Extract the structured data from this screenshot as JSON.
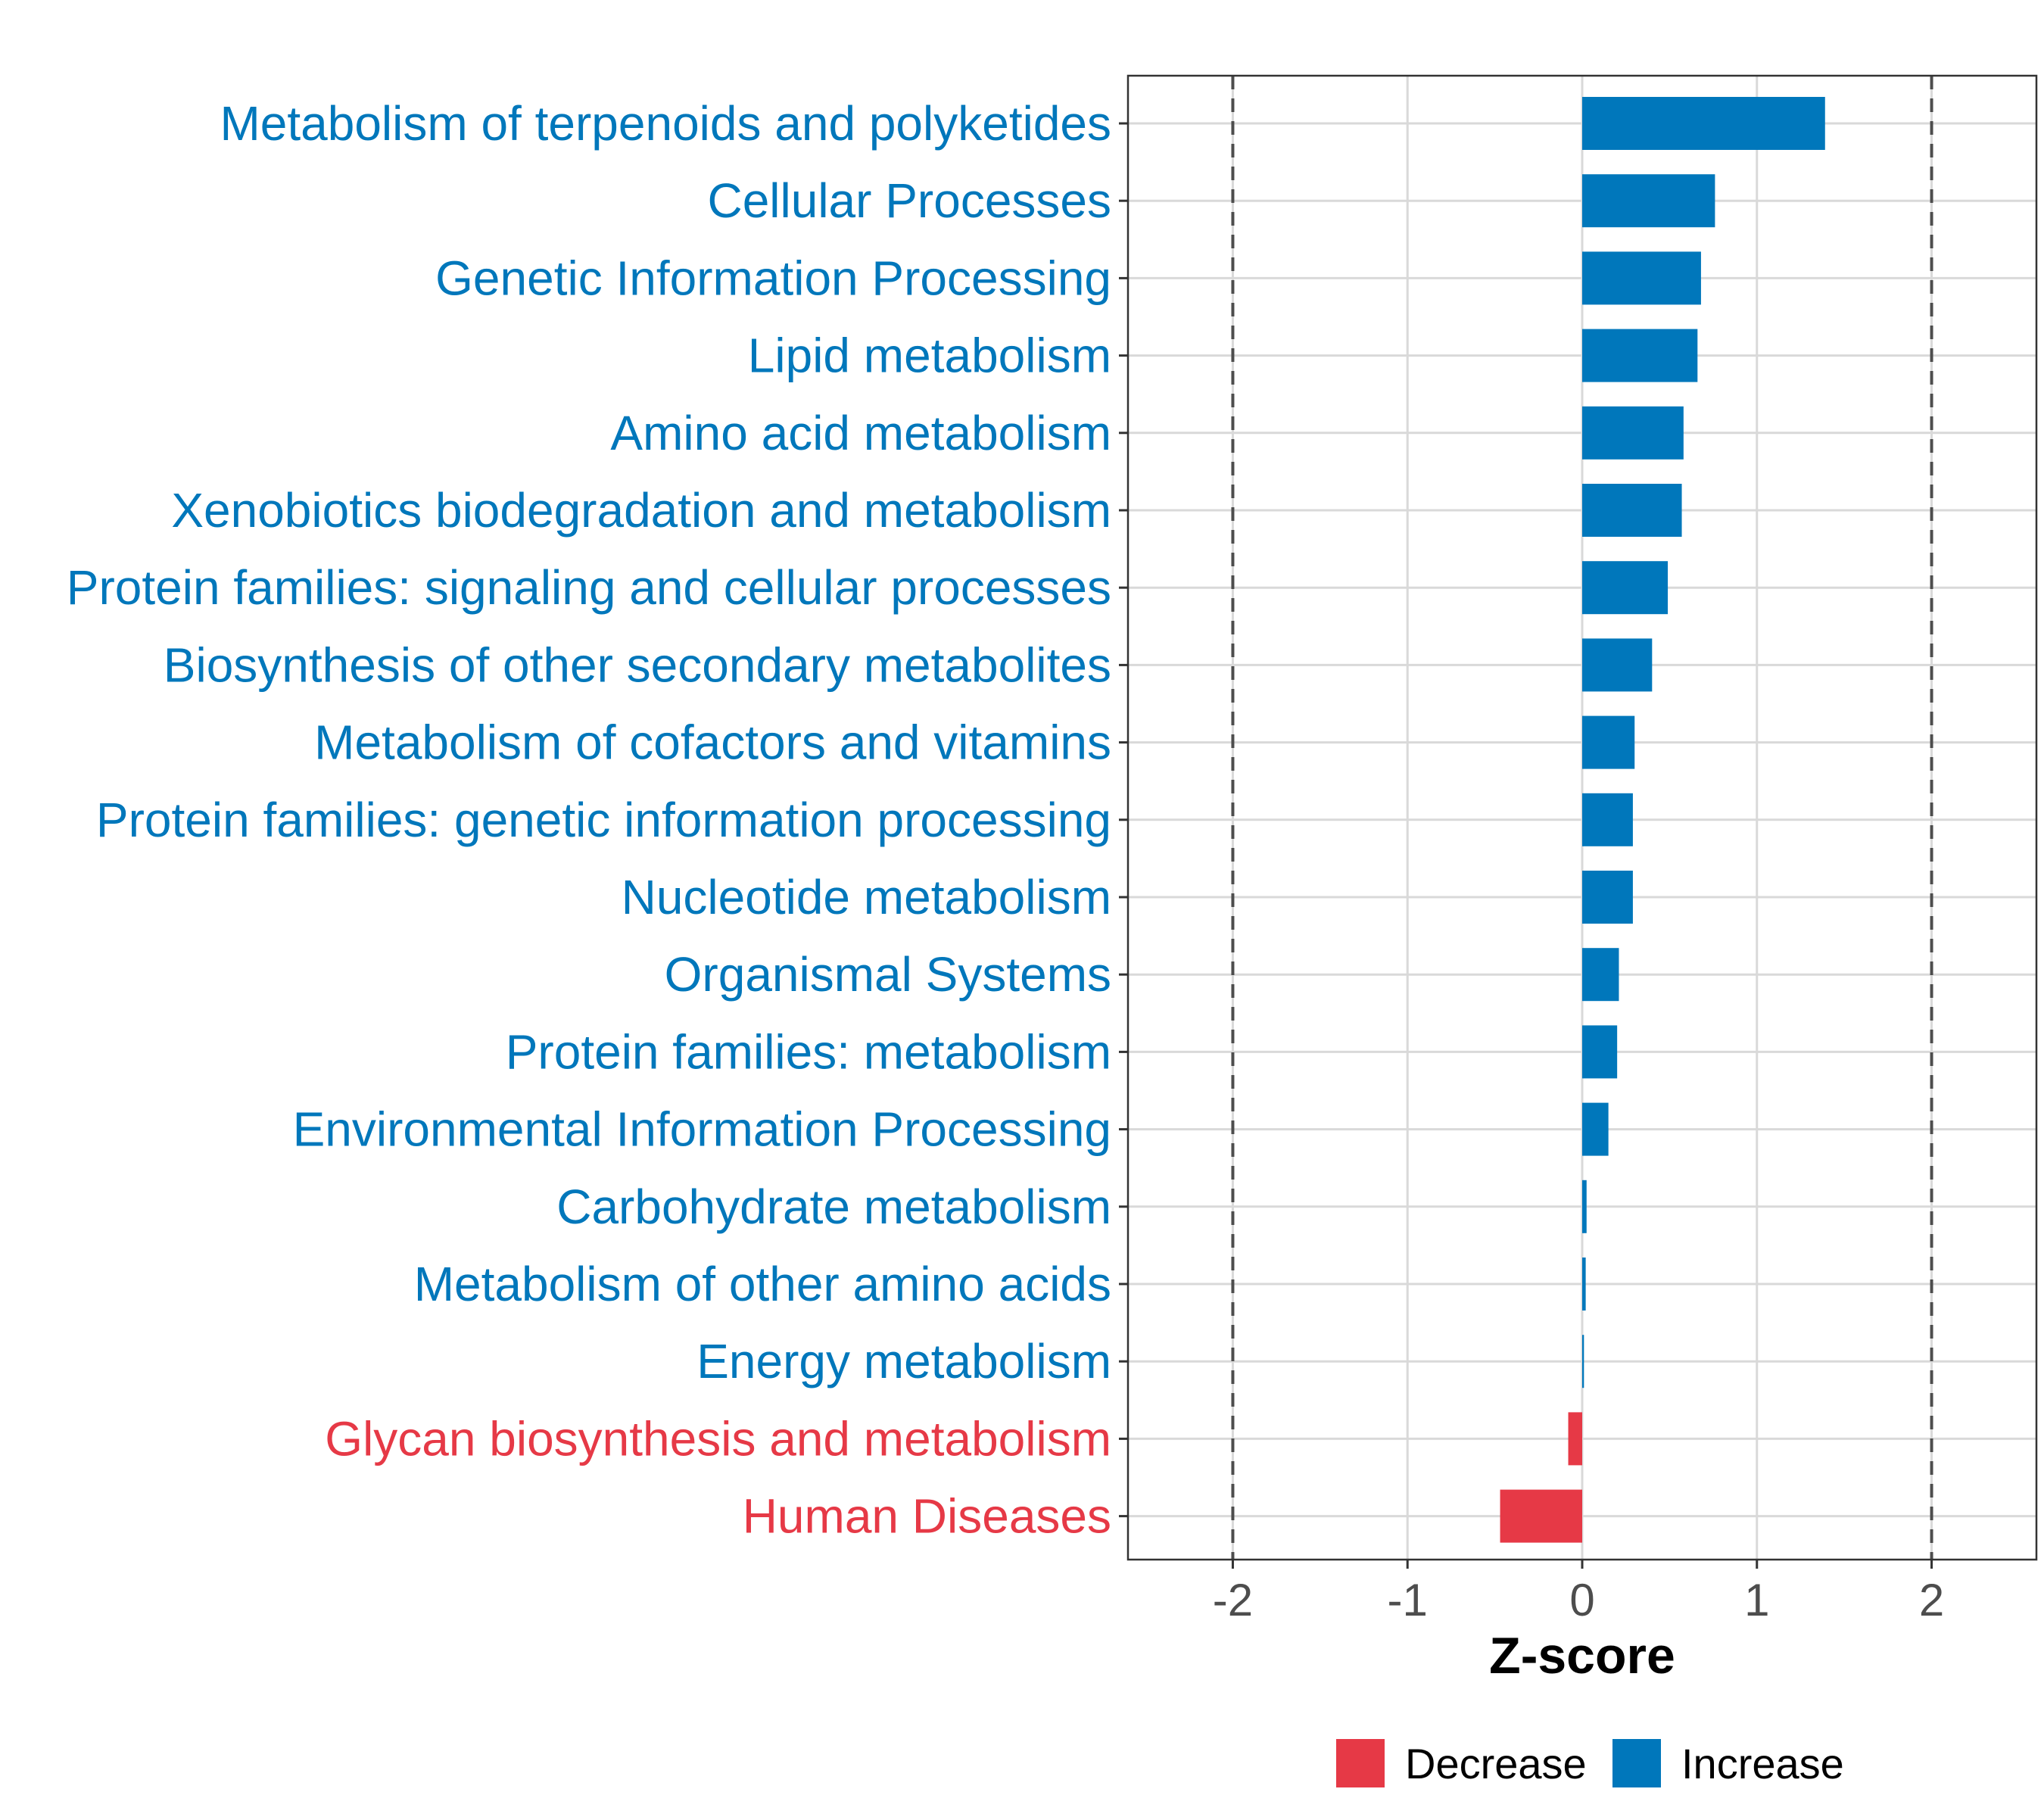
{
  "chart_data": {
    "type": "bar",
    "orientation": "horizontal",
    "xlabel": "Z-score",
    "ylabel": "",
    "xlim": [
      -2.6,
      2.6
    ],
    "x_ticks": [
      -2,
      -1,
      0,
      1,
      2
    ],
    "x_tick_labels": [
      "-2",
      "-1",
      "0",
      "1",
      "2"
    ],
    "reference_lines": [
      -2,
      2
    ],
    "grid": true,
    "categories": [
      "Metabolism of terpenoids and polyketides",
      "Cellular Processes",
      "Genetic Information Processing",
      "Lipid metabolism",
      "Amino acid metabolism",
      "Xenobiotics biodegradation and metabolism",
      "Protein families: signaling and cellular processes",
      "Biosynthesis of other secondary metabolites",
      "Metabolism of cofactors and vitamins",
      "Protein families: genetic information processing",
      "Nucleotide metabolism",
      "Organismal Systems",
      "Protein families: metabolism",
      "Environmental Information Processing",
      "Carbohydrate metabolism",
      "Metabolism of other amino acids",
      "Energy metabolism",
      "Glycan biosynthesis and metabolism",
      "Human Diseases"
    ],
    "values": [
      1.39,
      0.76,
      0.68,
      0.66,
      0.58,
      0.57,
      0.49,
      0.4,
      0.3,
      0.29,
      0.29,
      0.21,
      0.2,
      0.15,
      0.025,
      0.02,
      0.01,
      -0.08,
      -0.47
    ],
    "directions": [
      "Increase",
      "Increase",
      "Increase",
      "Increase",
      "Increase",
      "Increase",
      "Increase",
      "Increase",
      "Increase",
      "Increase",
      "Increase",
      "Increase",
      "Increase",
      "Increase",
      "Increase",
      "Increase",
      "Increase",
      "Decrease",
      "Decrease"
    ],
    "legend": {
      "placement": "bottom",
      "entries": [
        {
          "name": "Decrease",
          "color": "#e63946"
        },
        {
          "name": "Increase",
          "color": "#0077bb"
        }
      ]
    }
  },
  "colors": {
    "increase": "#0077bb",
    "decrease": "#e63946",
    "grid": "#d9d9d9",
    "reference_line": "#4d4d4d",
    "panel_border": "#333333"
  }
}
